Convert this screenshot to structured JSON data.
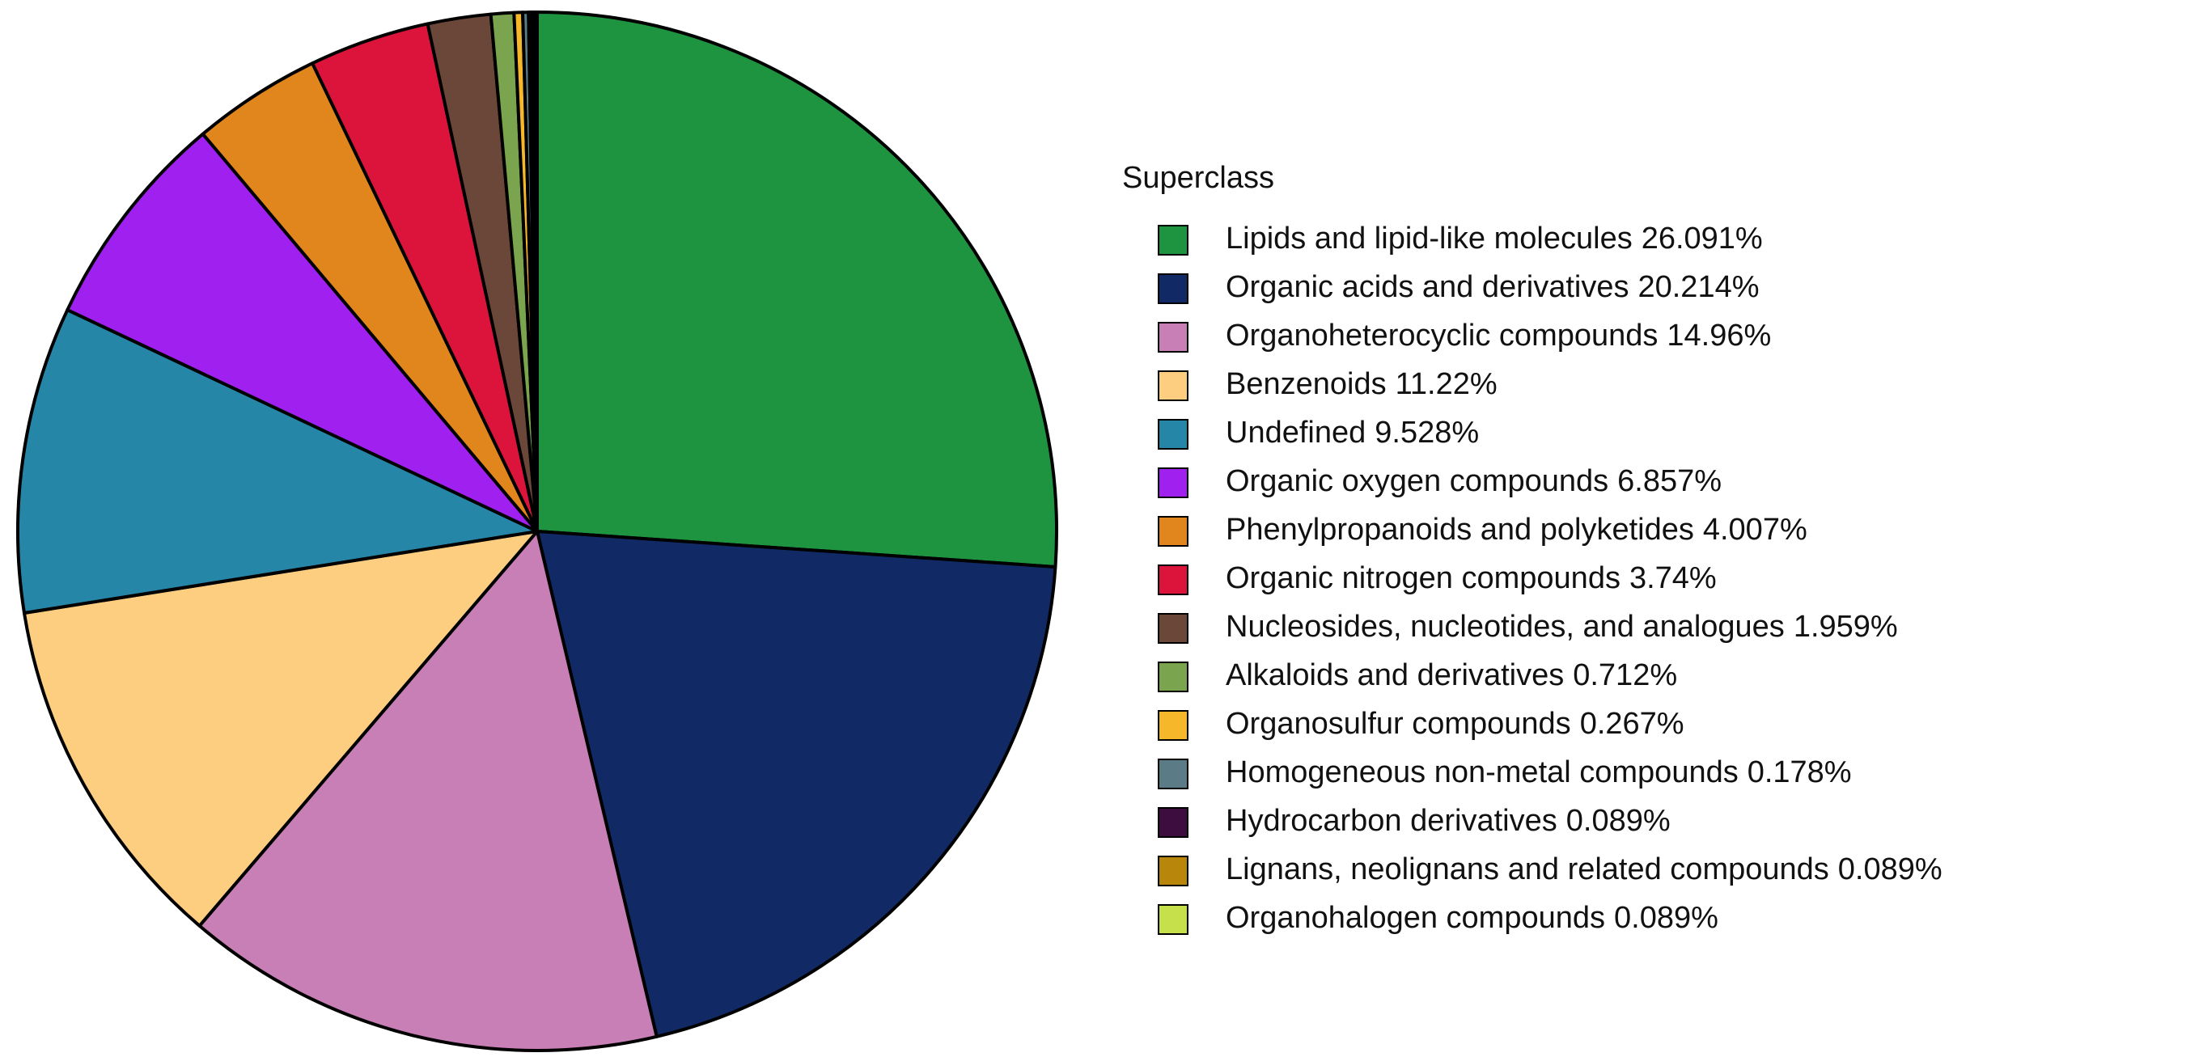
{
  "chart_data": {
    "type": "pie",
    "legend_title": "Superclass",
    "categories": [
      "Lipids and lipid-like molecules",
      "Organic acids and derivatives",
      "Organoheterocyclic compounds",
      "Benzenoids",
      "Undefined",
      "Organic oxygen compounds",
      "Phenylpropanoids and polyketides",
      "Organic nitrogen compounds",
      "Nucleosides, nucleotides, and analogues",
      "Alkaloids and derivatives",
      "Organosulfur compounds",
      "Homogeneous non-metal compounds",
      "Hydrocarbon derivatives",
      "Lignans, neolignans and related compounds",
      "Organohalogen compounds"
    ],
    "values": [
      26.091,
      20.214,
      14.96,
      11.22,
      9.528,
      6.857,
      4.007,
      3.74,
      1.959,
      0.712,
      0.267,
      0.178,
      0.089,
      0.089,
      0.089
    ],
    "value_labels": [
      "26.091%",
      "20.214%",
      "14.96%",
      "11.22%",
      "9.528%",
      "6.857%",
      "4.007%",
      "3.74%",
      "1.959%",
      "0.712%",
      "0.267%",
      "0.178%",
      "0.089%",
      "0.089%",
      "0.089%"
    ],
    "colors": [
      "#1f9440",
      "#112a66",
      "#c77fb5",
      "#fdcd80",
      "#2586a8",
      "#a020f0",
      "#e0861d",
      "#dc143c",
      "#6b4739",
      "#7aa44d",
      "#f7b72b",
      "#5b7b87",
      "#3d0d3f",
      "#b8860b",
      "#c5e04a"
    ],
    "legend_position": "right"
  }
}
